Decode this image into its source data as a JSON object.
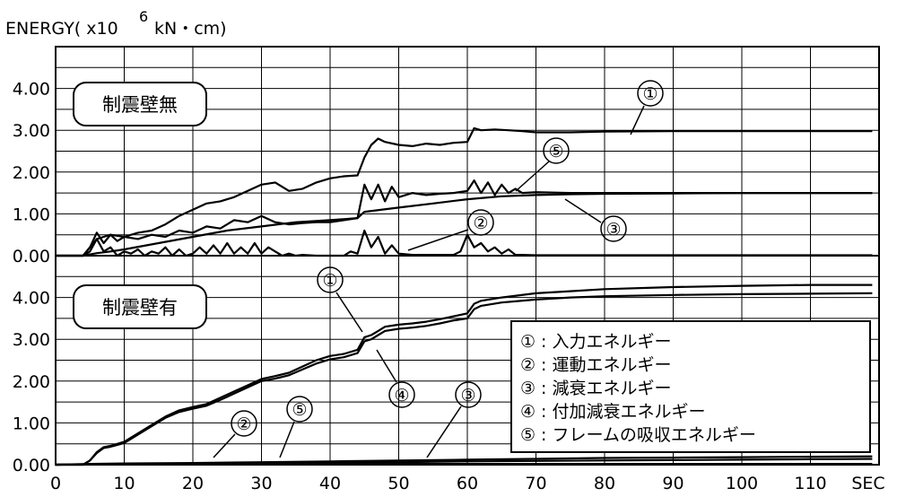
{
  "chart_data": {
    "type": "line",
    "ylabel": {
      "prefix": "ENERGY( x10",
      "exponent": "6",
      "unit": "kN・cm)"
    },
    "xlabel_unit": "SEC",
    "xlim": [
      0,
      120
    ],
    "x_ticks": [
      "0",
      "10",
      "20",
      "30",
      "40",
      "50",
      "60",
      "70",
      "80",
      "90",
      "100",
      "110"
    ],
    "y_ticks": [
      "0.00",
      "1.00",
      "2.00",
      "3.00",
      "4.00"
    ],
    "panels": [
      {
        "title": "制震壁無",
        "ylim": [
          0,
          5
        ],
        "series": [
          {
            "name": "①",
            "x": [
              0,
              4,
              5,
              6,
              7,
              8,
              10,
              12,
              14,
              16,
              18,
              20,
              22,
              24,
              26,
              28,
              30,
              32,
              34,
              36,
              38,
              40,
              42,
              44,
              45,
              46,
              47,
              48,
              50,
              52,
              54,
              56,
              58,
              60,
              61,
              62,
              64,
              66,
              68,
              70,
              75,
              80,
              90,
              100,
              110,
              119
            ],
            "y": [
              0,
              0,
              0.1,
              0.4,
              0.45,
              0.5,
              0.45,
              0.55,
              0.6,
              0.75,
              0.95,
              1.1,
              1.25,
              1.3,
              1.4,
              1.55,
              1.7,
              1.75,
              1.55,
              1.6,
              1.75,
              1.85,
              1.9,
              1.92,
              2.35,
              2.65,
              2.8,
              2.72,
              2.65,
              2.62,
              2.68,
              2.65,
              2.7,
              2.72,
              3.05,
              3.0,
              3.02,
              3.0,
              2.98,
              2.95,
              2.95,
              2.97,
              2.98,
              2.98,
              2.98,
              2.98
            ]
          },
          {
            "name": "②",
            "x": [
              0,
              4,
              5,
              6,
              7,
              8,
              9,
              10,
              11,
              12,
              13,
              14,
              15,
              16,
              17,
              18,
              19,
              20,
              21,
              22,
              23,
              24,
              25,
              26,
              27,
              28,
              29,
              30,
              31,
              32,
              33,
              34,
              35,
              36,
              38,
              40,
              42,
              43,
              44,
              45,
              46,
              47,
              48,
              49,
              50,
              52,
              55,
              58,
              59,
              60,
              61,
              62,
              63,
              64,
              65,
              66,
              67,
              68,
              70,
              80,
              90,
              100,
              110,
              119
            ],
            "y": [
              0,
              0,
              0.2,
              0.4,
              0.1,
              0.2,
              0,
              0.1,
              0.05,
              0.15,
              0,
              0.1,
              0.05,
              0.2,
              0,
              0.15,
              0,
              0.05,
              0.2,
              0.05,
              0.25,
              0.05,
              0.3,
              0.05,
              0.2,
              0.05,
              0.3,
              0.05,
              0.2,
              0.1,
              0,
              0.05,
              0,
              0.02,
              0,
              0,
              0,
              0.1,
              0.05,
              0.6,
              0.2,
              0.45,
              0.05,
              0.25,
              0.05,
              0.02,
              0.02,
              0.02,
              0.1,
              0.5,
              0.2,
              0.3,
              0.1,
              0.2,
              0.05,
              0.15,
              0.02,
              0.02,
              0.01,
              0.01,
              0.01,
              0.01,
              0.01,
              0.01
            ]
          },
          {
            "name": "③",
            "x": [
              0,
              4,
              5,
              6,
              7,
              8,
              10,
              15,
              20,
              25,
              30,
              35,
              40,
              44,
              45,
              50,
              55,
              60,
              65,
              70,
              75,
              80,
              90,
              100,
              110,
              119
            ],
            "y": [
              0,
              0,
              0.03,
              0.06,
              0.08,
              0.1,
              0.15,
              0.3,
              0.45,
              0.6,
              0.7,
              0.8,
              0.85,
              0.9,
              1.05,
              1.15,
              1.25,
              1.35,
              1.42,
              1.45,
              1.47,
              1.48,
              1.49,
              1.5,
              1.5,
              1.5
            ]
          },
          {
            "name": "⑤",
            "x": [
              0,
              4,
              5,
              6,
              7,
              8,
              9,
              10,
              12,
              14,
              16,
              18,
              20,
              22,
              24,
              26,
              28,
              30,
              32,
              34,
              36,
              38,
              40,
              42,
              44,
              45,
              46,
              47,
              48,
              49,
              50,
              52,
              54,
              56,
              58,
              60,
              61,
              62,
              63,
              64,
              65,
              66,
              67,
              68,
              70,
              75,
              80,
              90,
              100,
              110,
              119
            ],
            "y": [
              0,
              0,
              0.2,
              0.55,
              0.3,
              0.5,
              0.35,
              0.45,
              0.4,
              0.5,
              0.45,
              0.6,
              0.55,
              0.7,
              0.65,
              0.85,
              0.8,
              0.95,
              0.8,
              0.75,
              0.78,
              0.8,
              0.8,
              0.85,
              0.9,
              1.7,
              1.35,
              1.7,
              1.3,
              1.65,
              1.4,
              1.5,
              1.45,
              1.48,
              1.5,
              1.55,
              1.8,
              1.5,
              1.75,
              1.45,
              1.7,
              1.5,
              1.6,
              1.5,
              1.52,
              1.5,
              1.5,
              1.5,
              1.5,
              1.5,
              1.5
            ]
          }
        ]
      },
      {
        "title": "制震壁有",
        "ylim": [
          0,
          5
        ],
        "series": [
          {
            "name": "①",
            "x": [
              0,
              4,
              5,
              6,
              7,
              8,
              10,
              12,
              14,
              16,
              18,
              20,
              22,
              24,
              26,
              28,
              30,
              32,
              34,
              36,
              38,
              40,
              42,
              44,
              45,
              46,
              47,
              48,
              50,
              52,
              54,
              56,
              58,
              60,
              61,
              62,
              65,
              70,
              75,
              80,
              90,
              100,
              110,
              119
            ],
            "y": [
              0,
              0,
              0.1,
              0.3,
              0.42,
              0.45,
              0.55,
              0.75,
              0.95,
              1.15,
              1.3,
              1.38,
              1.45,
              1.6,
              1.75,
              1.9,
              2.05,
              2.12,
              2.2,
              2.35,
              2.5,
              2.6,
              2.65,
              2.75,
              3.05,
              3.1,
              3.2,
              3.3,
              3.35,
              3.38,
              3.42,
              3.48,
              3.55,
              3.62,
              3.85,
              3.92,
              4.0,
              4.1,
              4.15,
              4.2,
              4.25,
              4.28,
              4.3,
              4.3
            ]
          },
          {
            "name": "④",
            "x": [
              0,
              4,
              5,
              6,
              7,
              8,
              10,
              12,
              14,
              16,
              18,
              20,
              22,
              24,
              26,
              28,
              30,
              32,
              34,
              36,
              38,
              40,
              42,
              44,
              45,
              46,
              47,
              48,
              50,
              52,
              54,
              56,
              58,
              60,
              61,
              62,
              65,
              70,
              75,
              80,
              90,
              100,
              110,
              119
            ],
            "y": [
              0,
              0,
              0.1,
              0.28,
              0.4,
              0.43,
              0.52,
              0.72,
              0.92,
              1.12,
              1.26,
              1.34,
              1.41,
              1.55,
              1.7,
              1.85,
              2.0,
              2.06,
              2.14,
              2.28,
              2.42,
              2.52,
              2.57,
              2.67,
              2.95,
              3.0,
              3.1,
              3.2,
              3.25,
              3.28,
              3.32,
              3.38,
              3.45,
              3.5,
              3.72,
              3.8,
              3.88,
              3.95,
              4.0,
              4.03,
              4.06,
              4.08,
              4.09,
              4.1
            ]
          },
          {
            "name": "②",
            "x": [
              0,
              5,
              10,
              15,
              20,
              25,
              30,
              40,
              50,
              60,
              70,
              80,
              90,
              100,
              110,
              119
            ],
            "y": [
              0,
              0.01,
              0.01,
              0.02,
              0.02,
              0.02,
              0.02,
              0.02,
              0.02,
              0.02,
              0.02,
              0.02,
              0.02,
              0.02,
              0.02,
              0.02
            ]
          },
          {
            "name": "③",
            "x": [
              0,
              5,
              10,
              20,
              30,
              40,
              50,
              60,
              70,
              80,
              90,
              100,
              110,
              119
            ],
            "y": [
              0,
              0.02,
              0.03,
              0.04,
              0.06,
              0.08,
              0.1,
              0.12,
              0.14,
              0.16,
              0.17,
              0.18,
              0.19,
              0.2
            ]
          },
          {
            "name": "⑤",
            "x": [
              0,
              5,
              10,
              20,
              30,
              40,
              50,
              60,
              70,
              80,
              90,
              100,
              110,
              119
            ],
            "y": [
              0,
              0.01,
              0.02,
              0.03,
              0.04,
              0.05,
              0.06,
              0.08,
              0.09,
              0.1,
              0.11,
              0.12,
              0.13,
              0.14
            ]
          }
        ],
        "legend": [
          {
            "mark": "①",
            "label": ": 入力エネルギー"
          },
          {
            "mark": "②",
            "label": ": 運動エネルギー"
          },
          {
            "mark": "③",
            "label": ": 減衰エネルギー"
          },
          {
            "mark": "④",
            "label": ": 付加減衰エネルギー"
          },
          {
            "mark": "⑤",
            "label": ": フレームの吸収エネルギー"
          }
        ]
      }
    ]
  }
}
